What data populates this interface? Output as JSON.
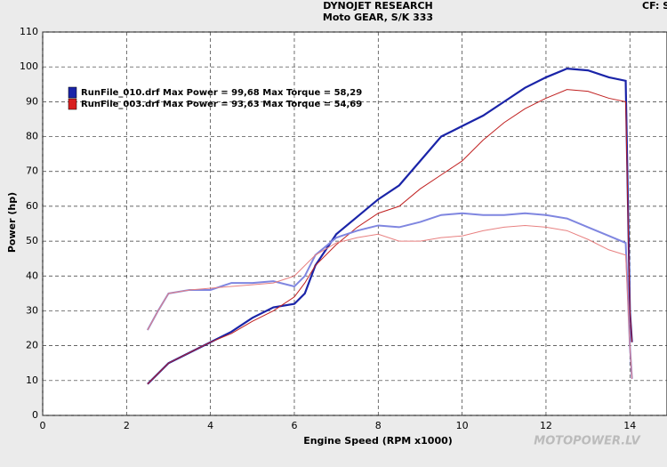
{
  "chart_data": {
    "type": "line",
    "title": "DYNOJET RESEARCH",
    "subtitle": "Moto GEAR, S/K 333",
    "corner_text": "CF: S",
    "watermark": "MOTOPOWER.LV",
    "x_label": "Engine Speed (RPM x1000)",
    "y_label": "Power (hp)",
    "xlim": [
      0,
      14.8
    ],
    "xticks": [
      0,
      2,
      4,
      6,
      8,
      10,
      12,
      14
    ],
    "ylim": [
      0,
      110
    ],
    "yticks": [
      0,
      10,
      20,
      30,
      40,
      50,
      60,
      70,
      80,
      90,
      100,
      110
    ],
    "grid": true,
    "legend": [
      {
        "label": "RunFile_010.drf Max Power = 99,68 Max Torque = 58,29",
        "color": "#1a24a8"
      },
      {
        "label": "RunFile_003.drf Max Power = 93,63 Max Torque = 54,69",
        "color": "#d92020"
      }
    ],
    "x": [
      2.5,
      2.75,
      3,
      3.5,
      4,
      4.5,
      5,
      5.5,
      6,
      6.25,
      6.5,
      7,
      7.5,
      8,
      8.5,
      9,
      9.5,
      10,
      10.5,
      11,
      11.5,
      12,
      12.5,
      13,
      13.5,
      13.9,
      14,
      14.05
    ],
    "series": [
      {
        "color": "#1a24a8",
        "width": 2.2,
        "values": [
          9,
          12,
          15,
          18,
          21,
          24,
          28,
          31,
          32,
          35,
          43,
          52,
          57,
          62,
          66,
          73,
          80,
          83,
          86,
          90,
          94,
          97,
          99.5,
          99,
          97,
          96,
          30,
          21
        ]
      },
      {
        "color": "#c02020",
        "width": 1,
        "values": [
          9,
          12,
          15,
          18,
          21,
          23.5,
          27,
          30,
          34,
          38,
          43,
          49,
          54,
          58,
          60,
          65,
          69,
          73,
          79,
          84,
          88,
          91,
          93.5,
          93,
          91,
          90,
          30,
          21
        ]
      },
      {
        "color": "#7f86e0",
        "width": 2,
        "values": [
          24.5,
          30,
          35,
          36,
          36,
          38,
          38,
          38.5,
          37,
          40,
          46,
          51,
          53,
          54.5,
          54,
          55.5,
          57.5,
          58,
          57.5,
          57.5,
          58,
          57.5,
          56.5,
          54,
          51.5,
          49.5,
          20,
          10.5
        ]
      },
      {
        "color": "#e88080",
        "width": 1,
        "values": [
          24.5,
          30,
          35,
          36,
          36.5,
          37,
          37.5,
          38,
          40,
          43,
          46,
          49.5,
          51,
          52,
          50,
          50,
          51,
          51.5,
          53,
          54,
          54.5,
          54,
          53,
          50.5,
          47.5,
          46,
          20,
          10.5
        ]
      }
    ]
  }
}
